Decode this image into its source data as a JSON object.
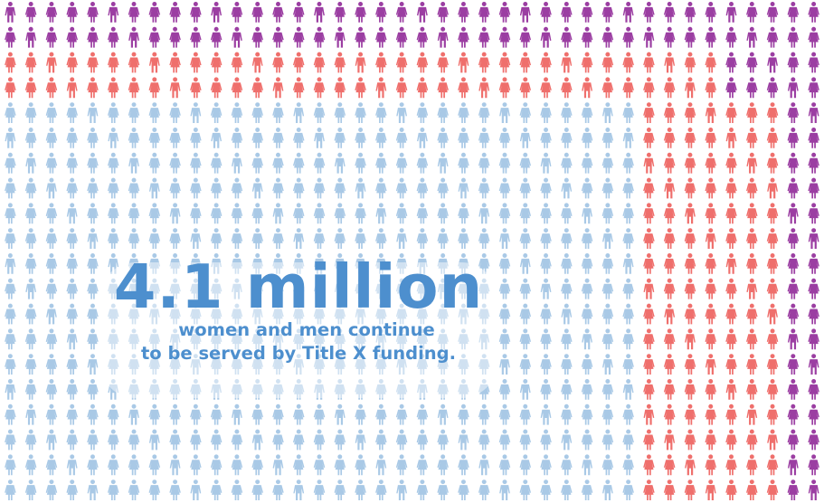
{
  "headline": {
    "figure": "4.1 million",
    "line1": "women and men continue",
    "line2": "to be served by Title X funding."
  },
  "colors": {
    "purple": "#9b3ea2",
    "coral": "#ef6f6c",
    "light_blue": "#a9c9e6",
    "headline_blue": "#4d8fce",
    "background": "#ffffff"
  },
  "grid": {
    "rows": 20,
    "columns": 40,
    "icon_name": "person-icon",
    "blue_rows_start": 6,
    "coral_columns_end": 35
  }
}
